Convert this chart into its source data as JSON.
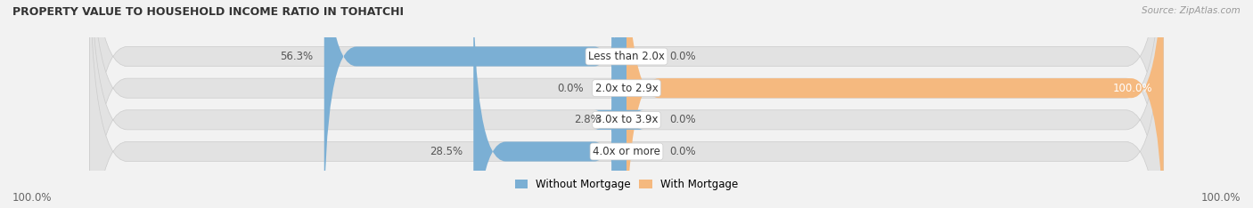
{
  "title": "PROPERTY VALUE TO HOUSEHOLD INCOME RATIO IN TOHATCHI",
  "source": "Source: ZipAtlas.com",
  "categories": [
    "Less than 2.0x",
    "2.0x to 2.9x",
    "3.0x to 3.9x",
    "4.0x or more"
  ],
  "without_mortgage": [
    56.3,
    0.0,
    2.8,
    28.5
  ],
  "with_mortgage": [
    0.0,
    100.0,
    0.0,
    0.0
  ],
  "without_mortgage_labels": [
    "56.3%",
    "0.0%",
    "2.8%",
    "28.5%"
  ],
  "with_mortgage_labels": [
    "0.0%",
    "100.0%",
    "0.0%",
    "0.0%"
  ],
  "without_mortgage_color": "#7BAFD4",
  "with_mortgage_color": "#F5B97F",
  "background_color": "#f2f2f2",
  "bar_bg_color": "#e2e2e2",
  "bar_height": 0.62,
  "figsize": [
    14.06,
    2.34
  ],
  "dpi": 100,
  "axis_label_left": "100.0%",
  "axis_label_right": "100.0%",
  "legend_without": "Without Mortgage",
  "legend_with": "With Mortgage",
  "title_fontsize": 9,
  "label_fontsize": 8.5,
  "cat_fontsize": 8.5,
  "value_label_fontsize": 8.5
}
